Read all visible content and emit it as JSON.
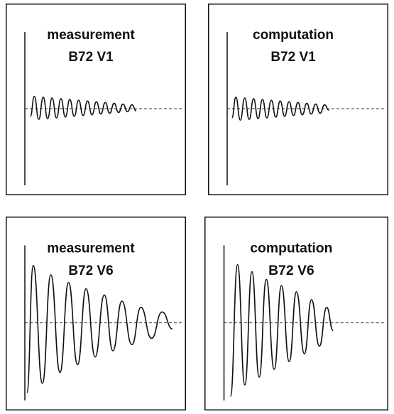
{
  "chart_data": [
    {
      "type": "line",
      "title": "measurement",
      "subtitle": "B72 V1",
      "color": "#111111",
      "xlim": [
        0,
        10
      ],
      "ylim": [
        -1,
        1
      ],
      "x": [
        0.35,
        0.6,
        0.88,
        1.16,
        1.44,
        1.72,
        2.0,
        2.28,
        2.56,
        2.84,
        3.12,
        3.4,
        3.68,
        3.96,
        4.24,
        4.52,
        4.8,
        5.08,
        5.36,
        5.64,
        5.92,
        6.2,
        6.48,
        6.76,
        7.04
      ],
      "values": [
        -0.1,
        0.16,
        -0.14,
        0.15,
        -0.13,
        0.14,
        -0.12,
        0.13,
        -0.11,
        0.12,
        -0.1,
        0.11,
        -0.09,
        0.1,
        -0.08,
        0.09,
        -0.07,
        0.08,
        -0.06,
        0.07,
        -0.05,
        0.06,
        -0.04,
        0.05,
        -0.03
      ]
    },
    {
      "type": "line",
      "title": "computation",
      "subtitle": "B72 V1",
      "color": "#111111",
      "xlim": [
        0,
        10
      ],
      "ylim": [
        -1,
        1
      ],
      "x": [
        0.3,
        0.55,
        0.83,
        1.11,
        1.39,
        1.67,
        1.95,
        2.23,
        2.51,
        2.79,
        3.07,
        3.35,
        3.63,
        3.91,
        4.19,
        4.47,
        4.75,
        5.03,
        5.31,
        5.59,
        5.87,
        6.15,
        6.43
      ],
      "values": [
        -0.12,
        0.15,
        -0.15,
        0.14,
        -0.14,
        0.13,
        -0.13,
        0.12,
        -0.12,
        0.11,
        -0.11,
        0.1,
        -0.1,
        0.09,
        -0.09,
        0.08,
        -0.08,
        0.07,
        -0.07,
        0.06,
        -0.06,
        0.05,
        -0.02
      ]
    },
    {
      "type": "line",
      "title": "measurement",
      "subtitle": "B72 V6",
      "color": "#111111",
      "xlim": [
        0,
        10
      ],
      "ylim": [
        -1,
        1
      ],
      "x": [
        0.13,
        0.53,
        1.11,
        1.64,
        2.22,
        2.76,
        3.33,
        3.87,
        4.44,
        5.02,
        5.56,
        6.13,
        6.76,
        7.33,
        8.0,
        8.67,
        9.33
      ],
      "values": [
        -0.9,
        0.74,
        -0.78,
        0.62,
        -0.64,
        0.52,
        -0.54,
        0.44,
        -0.44,
        0.36,
        -0.36,
        0.28,
        -0.28,
        0.2,
        -0.2,
        0.14,
        -0.08
      ]
    },
    {
      "type": "line",
      "title": "computation",
      "subtitle": "B72 V6",
      "color": "#111111",
      "xlim": [
        0,
        10
      ],
      "ylim": [
        -1,
        1
      ],
      "x": [
        0.4,
        0.84,
        1.29,
        1.73,
        2.18,
        2.62,
        3.11,
        3.56,
        4.04,
        4.49,
        4.98,
        5.42,
        5.91,
        6.36,
        6.76
      ],
      "values": [
        -0.95,
        0.75,
        -0.8,
        0.66,
        -0.7,
        0.56,
        -0.6,
        0.48,
        -0.5,
        0.4,
        -0.4,
        0.3,
        -0.3,
        0.2,
        -0.1
      ]
    }
  ]
}
